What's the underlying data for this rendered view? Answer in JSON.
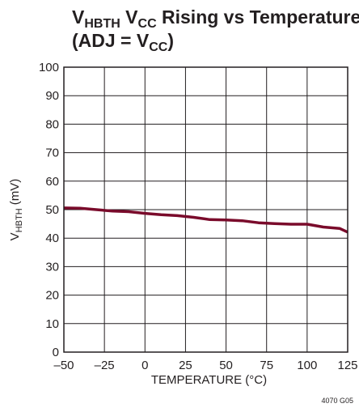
{
  "chart_data": {
    "type": "line",
    "title": {
      "line1": [
        {
          "text": "V",
          "sub": false
        },
        {
          "text": "HBTH",
          "sub": true
        },
        {
          "text": " V",
          "sub": false
        },
        {
          "text": "CC",
          "sub": true
        },
        {
          "text": " Rising vs Temperature",
          "sub": false
        }
      ],
      "line2": [
        {
          "text": "(ADJ = V",
          "sub": false
        },
        {
          "text": "CC",
          "sub": true
        },
        {
          "text": ")",
          "sub": false
        }
      ]
    },
    "xlabel": "TEMPERATURE (°C)",
    "ylabel": {
      "main": "V",
      "sub": "HBTH",
      "unit": " (mV)"
    },
    "xlim": [
      -50,
      125
    ],
    "ylim": [
      0,
      100
    ],
    "x_ticks": [
      -50,
      -25,
      0,
      25,
      50,
      75,
      100,
      125
    ],
    "x_tick_labels": [
      "–50",
      "–25",
      "0",
      "25",
      "50",
      "75",
      "100",
      "125"
    ],
    "y_ticks": [
      0,
      10,
      20,
      30,
      40,
      50,
      60,
      70,
      80,
      90,
      100
    ],
    "y_tick_labels": [
      "0",
      "10",
      "20",
      "30",
      "40",
      "50",
      "60",
      "70",
      "80",
      "90",
      "100"
    ],
    "grid": true,
    "series": [
      {
        "color": "#7a0b2b",
        "x": [
          -50,
          -40,
          -30,
          -20,
          -10,
          0,
          10,
          20,
          30,
          40,
          50,
          60,
          70,
          80,
          90,
          100,
          110,
          120,
          125
        ],
        "y": [
          50.6,
          50.5,
          50.0,
          49.5,
          49.3,
          48.7,
          48.2,
          47.9,
          47.3,
          46.5,
          46.4,
          46.1,
          45.4,
          45.1,
          44.9,
          44.9,
          43.9,
          43.4,
          42.1
        ]
      }
    ],
    "figure_code": "4070 G05"
  }
}
